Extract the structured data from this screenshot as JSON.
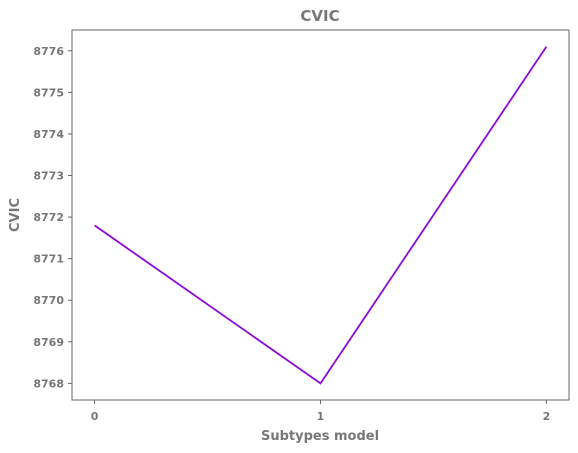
{
  "chart_data": {
    "type": "line",
    "title": "CVIC",
    "xlabel": "Subtypes model",
    "ylabel": "CVIC",
    "x": [
      0,
      1,
      2
    ],
    "x_ticks": [
      "0",
      "1",
      "2"
    ],
    "y_ticks": [
      "8768",
      "8769",
      "8770",
      "8771",
      "8772",
      "8773",
      "8774",
      "8775",
      "8776"
    ],
    "xlim": [
      -0.1,
      2.1
    ],
    "ylim": [
      8767.6,
      8776.5
    ],
    "series": [
      {
        "values": [
          8771.8,
          8768.0,
          8776.1
        ],
        "color": "#8b0ad6"
      }
    ],
    "grid": false,
    "legend": "none"
  }
}
